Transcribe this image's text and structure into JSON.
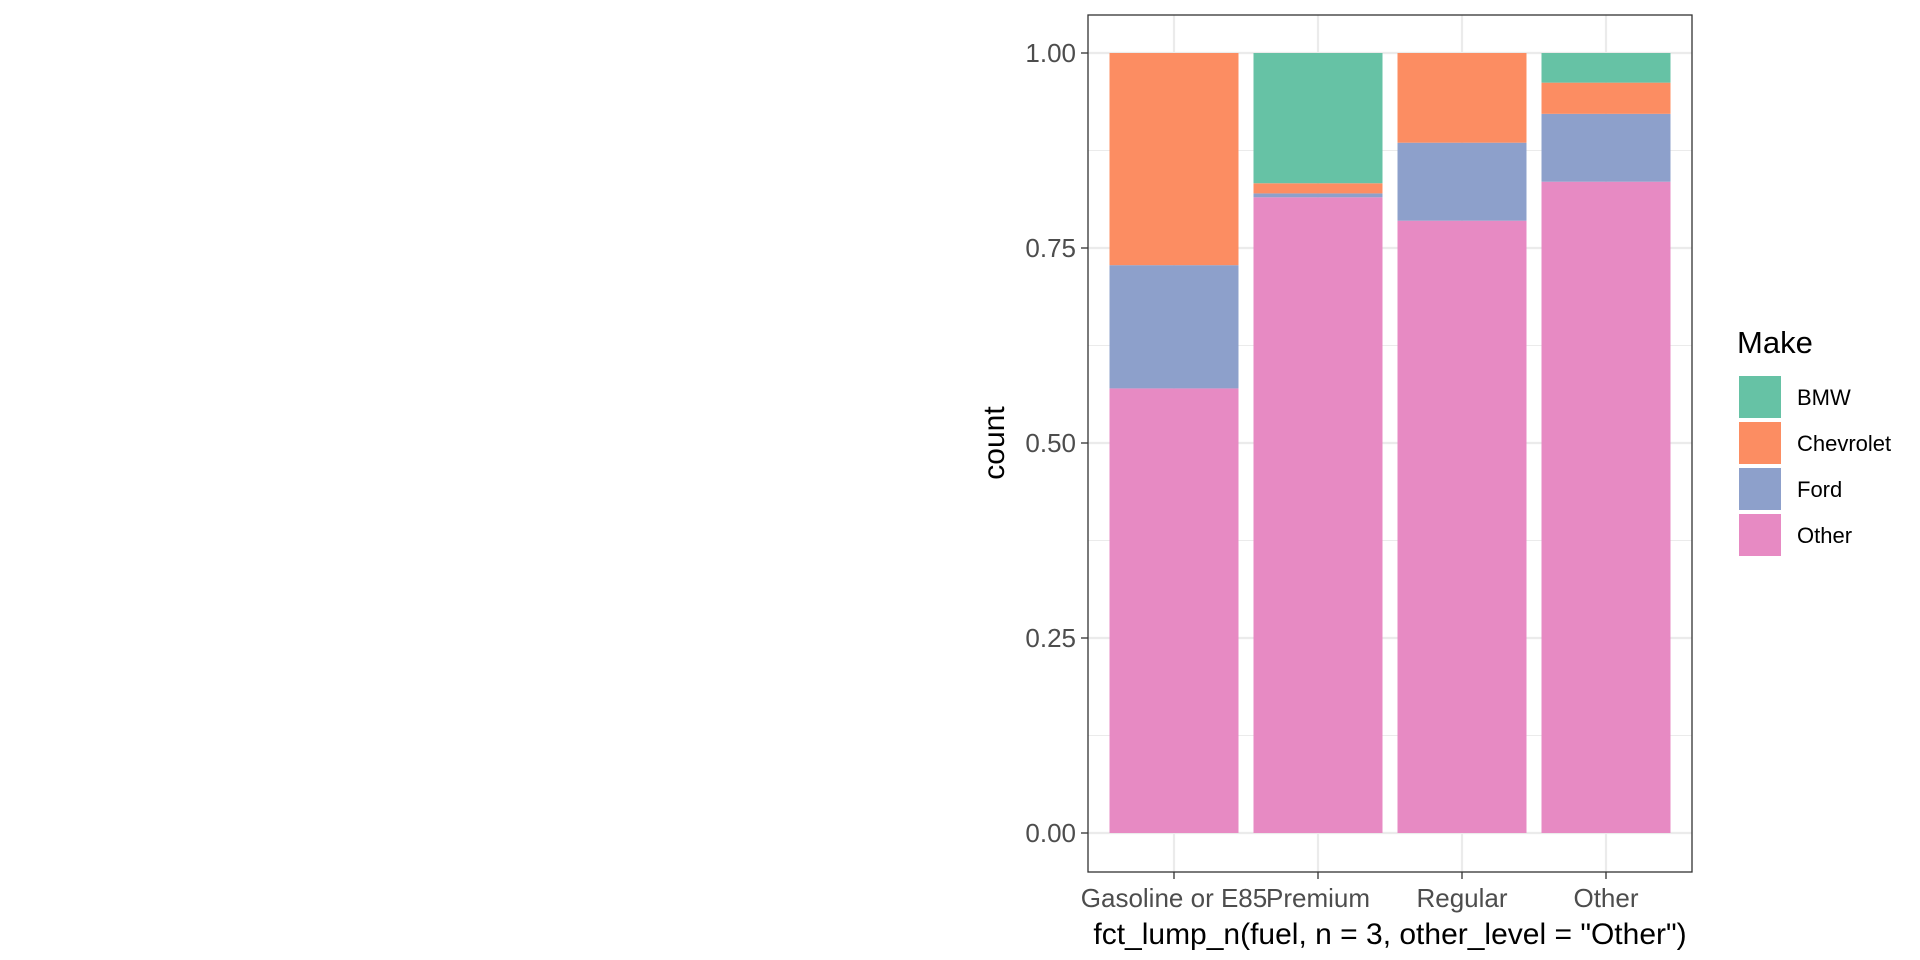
{
  "chart_data": {
    "type": "bar",
    "stacked": true,
    "position": "fill",
    "categories": [
      "Gasoline or E85",
      "Premium",
      "Regular",
      "Other"
    ],
    "series": [
      {
        "name": "Other",
        "color": "#E78AC3",
        "values": [
          0.57,
          0.815,
          0.785,
          0.835
        ]
      },
      {
        "name": "Ford",
        "color": "#8DA0CB",
        "values": [
          0.158,
          0.005,
          0.1,
          0.087
        ]
      },
      {
        "name": "Chevrolet",
        "color": "#FC8D62",
        "values": [
          0.272,
          0.013,
          0.115,
          0.04
        ]
      },
      {
        "name": "BMW",
        "color": "#66C2A5",
        "values": [
          0.0,
          0.167,
          0.0,
          0.038
        ]
      }
    ],
    "title": "",
    "xlabel": "fct_lump_n(fuel, n = 3, other_level = \"Other\")",
    "ylabel": "count",
    "ylim": [
      0,
      1
    ],
    "yticks": [
      "0.00",
      "0.25",
      "0.50",
      "0.75",
      "1.00"
    ],
    "yticks_values": [
      0,
      0.25,
      0.5,
      0.75,
      1.0
    ],
    "grid": true,
    "legend": {
      "title": "Make",
      "placement": "right",
      "items": [
        "BMW",
        "Chevrolet",
        "Ford",
        "Other"
      ]
    }
  },
  "colors": {
    "gridline": "#ebebeb",
    "panel_border": "#333333",
    "tick_text": "#4d4d4d",
    "background": "#ffffff"
  }
}
